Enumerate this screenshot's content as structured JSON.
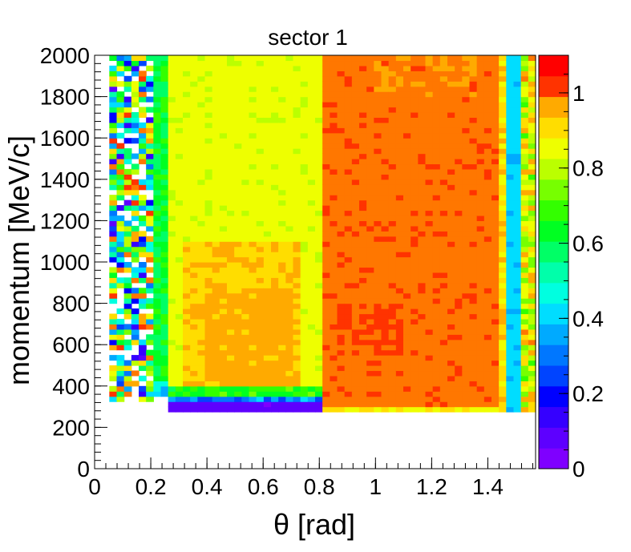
{
  "chart_data": {
    "type": "heatmap",
    "title": "sector 1",
    "xlabel": "θ [rad]",
    "ylabel": "momentum [MeV/c]",
    "xlim": [
      0,
      1.57
    ],
    "ylim": [
      0,
      2000
    ],
    "zlim": [
      0,
      1.1
    ],
    "x_ticks": [
      "0",
      "0.2",
      "0.4",
      "0.6",
      "0.8",
      "1",
      "1.2",
      "1.4"
    ],
    "y_ticks": [
      "0",
      "200",
      "400",
      "600",
      "800",
      "1000",
      "1200",
      "1400",
      "1600",
      "1800",
      "2000"
    ],
    "z_ticks": [
      "0",
      "0.2",
      "0.4",
      "0.6",
      "0.8",
      "1"
    ],
    "regions": [
      {
        "theta": [
          0.05,
          0.22
        ],
        "p": [
          330,
          2000
        ],
        "value": "mixed 0.1-1.1 (noisy, sparse)"
      },
      {
        "theta": [
          0.22,
          0.26
        ],
        "p": [
          360,
          2000
        ],
        "value": 0.6
      },
      {
        "theta": [
          0.26,
          0.8
        ],
        "p": [
          400,
          2000
        ],
        "value": 0.85
      },
      {
        "theta": [
          0.32,
          0.72
        ],
        "p": [
          400,
          1100
        ],
        "value": 0.95
      },
      {
        "theta": [
          0.8,
          1.42
        ],
        "p": [
          300,
          2000
        ],
        "value": 1.02
      },
      {
        "theta": [
          0.86,
          1.1
        ],
        "p": [
          550,
          800
        ],
        "value": 1.08
      },
      {
        "theta": [
          1.47,
          1.52
        ],
        "p": [
          280,
          2000
        ],
        "value": 0.4
      },
      {
        "theta": [
          1.52,
          1.57
        ],
        "p": [
          280,
          2000
        ],
        "value": "mixed 0.7-1.0"
      },
      {
        "theta": [
          0.2,
          0.85
        ],
        "p": [
          280,
          340
        ],
        "value": 0.08
      }
    ]
  }
}
